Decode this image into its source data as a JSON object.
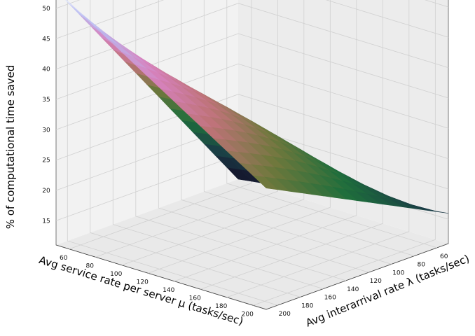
{
  "chart_data": {
    "type": "surface",
    "title": "",
    "xlabel": "Avg service rate per server μ (tasks/sec)",
    "ylabel": "Avg interarrival rate λ (tasks/sec)",
    "zlabel": "% of computational time saved",
    "x_range": [
      50,
      210
    ],
    "y_range": [
      50,
      210
    ],
    "z_range": [
      11,
      53
    ],
    "x_ticks": [
      "60",
      "80",
      "100",
      "120",
      "140",
      "160",
      "180",
      "200"
    ],
    "y_ticks": [
      "60",
      "80",
      "100",
      "120",
      "140",
      "160",
      "180",
      "200"
    ],
    "z_ticks": [
      "15",
      "20",
      "25",
      "30",
      "35",
      "40",
      "45",
      "50"
    ],
    "grid": true,
    "colormap": "cubehelix",
    "corners": [
      {
        "mu": 50,
        "lambda": 210,
        "z": 53
      },
      {
        "mu": 210,
        "lambda": 210,
        "z": 31
      },
      {
        "mu": 210,
        "lambda": 50,
        "z": 16
      },
      {
        "mu": 50,
        "lambda": 50,
        "z": 11
      }
    ]
  }
}
